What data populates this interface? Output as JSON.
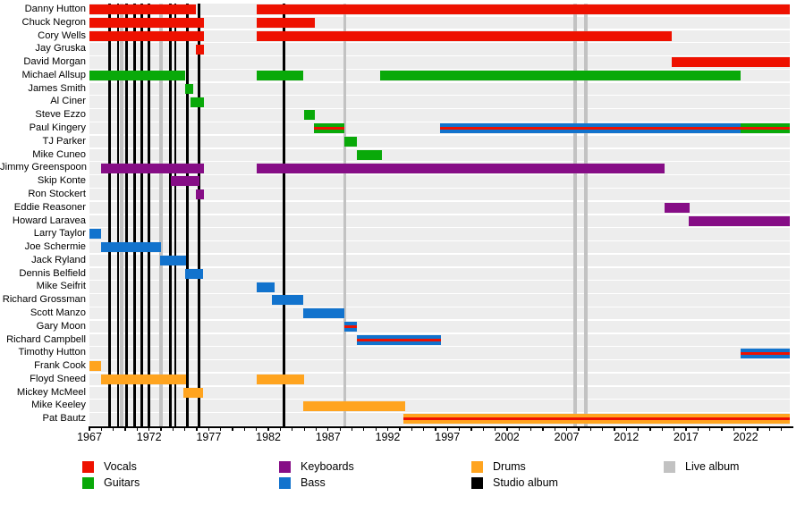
{
  "chart_data": {
    "type": "bar",
    "variant": "band-membership-timeline-gantt",
    "title": "",
    "x_axis": {
      "min": 1967,
      "max": 2025.7,
      "major_ticks": [
        1967,
        1972,
        1977,
        1982,
        1987,
        1992,
        1997,
        2002,
        2007,
        2012,
        2017,
        2022
      ],
      "minor_tick_interval": 1,
      "grid": "off",
      "tick_label_format": "year"
    },
    "role_colors": {
      "vocals": "#ee1100",
      "guitars": "#09a909",
      "keyboards": "#860d86",
      "bass": "#1273cd",
      "drums": "#ffa41f"
    },
    "album_line_colors": {
      "studio": "#000000",
      "live": "#c2c2c2"
    },
    "legend": {
      "position": "bottom",
      "columns": [
        [
          {
            "label": "Vocals",
            "color": "#ee1100",
            "kind": "role"
          },
          {
            "label": "Guitars",
            "color": "#09a909",
            "kind": "role"
          }
        ],
        [
          {
            "label": "Keyboards",
            "color": "#860d86",
            "kind": "role"
          },
          {
            "label": "Bass",
            "color": "#1273cd",
            "kind": "role"
          }
        ],
        [
          {
            "label": "Drums",
            "color": "#ffa41f",
            "kind": "role"
          },
          {
            "label": "Studio album",
            "color": "#000000",
            "kind": "album-line"
          }
        ],
        [
          {
            "label": "Live album",
            "color": "#c2c2c2",
            "kind": "album-line"
          }
        ]
      ]
    },
    "members": [
      {
        "name": "Danny Hutton",
        "bars": [
          {
            "start": 1967.0,
            "end": 1975.9,
            "roles": [
              "vocals"
            ]
          },
          {
            "start": 1981.0,
            "end": 2025.7,
            "roles": [
              "vocals"
            ]
          }
        ]
      },
      {
        "name": "Chuck Negron",
        "bars": [
          {
            "start": 1967.0,
            "end": 1976.6,
            "roles": [
              "vocals"
            ]
          },
          {
            "start": 1981.0,
            "end": 1985.9,
            "roles": [
              "vocals"
            ]
          }
        ]
      },
      {
        "name": "Cory Wells",
        "bars": [
          {
            "start": 1967.0,
            "end": 1976.6,
            "roles": [
              "vocals"
            ]
          },
          {
            "start": 1981.0,
            "end": 2015.8,
            "roles": [
              "vocals"
            ]
          }
        ]
      },
      {
        "name": "Jay Gruska",
        "bars": [
          {
            "start": 1975.9,
            "end": 1976.6,
            "roles": [
              "vocals"
            ]
          }
        ]
      },
      {
        "name": "David Morgan",
        "bars": [
          {
            "start": 2015.8,
            "end": 2025.7,
            "roles": [
              "vocals"
            ]
          }
        ]
      },
      {
        "name": "Michael Allsup",
        "bars": [
          {
            "start": 1967.0,
            "end": 1975.0,
            "roles": [
              "guitars"
            ]
          },
          {
            "start": 1981.0,
            "end": 1984.9,
            "roles": [
              "guitars"
            ]
          },
          {
            "start": 1991.4,
            "end": 2021.6,
            "roles": [
              "guitars"
            ]
          }
        ]
      },
      {
        "name": "James Smith",
        "bars": [
          {
            "start": 1975.0,
            "end": 1975.7,
            "roles": [
              "guitars"
            ]
          }
        ]
      },
      {
        "name": "Al Ciner",
        "bars": [
          {
            "start": 1975.5,
            "end": 1976.6,
            "roles": [
              "guitars"
            ]
          }
        ]
      },
      {
        "name": "Steve Ezzo",
        "bars": [
          {
            "start": 1985.0,
            "end": 1985.9,
            "roles": [
              "guitars"
            ]
          }
        ]
      },
      {
        "name": "Paul Kingery",
        "bars": [
          {
            "start": 1985.8,
            "end": 1988.4,
            "roles": [
              "guitars",
              "vocals"
            ]
          },
          {
            "start": 1996.4,
            "end": 2021.6,
            "roles": [
              "bass",
              "vocals"
            ]
          },
          {
            "start": 2021.6,
            "end": 2025.7,
            "roles": [
              "guitars",
              "vocals"
            ]
          }
        ]
      },
      {
        "name": "TJ Parker",
        "bars": [
          {
            "start": 1988.4,
            "end": 1989.4,
            "roles": [
              "guitars"
            ]
          }
        ]
      },
      {
        "name": "Mike Cuneo",
        "bars": [
          {
            "start": 1989.4,
            "end": 1991.5,
            "roles": [
              "guitars"
            ]
          }
        ]
      },
      {
        "name": "Jimmy Greenspoon",
        "bars": [
          {
            "start": 1968.0,
            "end": 1976.6,
            "roles": [
              "keyboards"
            ]
          },
          {
            "start": 1981.0,
            "end": 2015.2,
            "roles": [
              "keyboards"
            ]
          }
        ]
      },
      {
        "name": "Skip Konte",
        "bars": [
          {
            "start": 1973.8,
            "end": 1976.2,
            "roles": [
              "keyboards"
            ]
          }
        ]
      },
      {
        "name": "Ron Stockert",
        "bars": [
          {
            "start": 1975.9,
            "end": 1976.6,
            "roles": [
              "keyboards"
            ]
          }
        ]
      },
      {
        "name": "Eddie Reasoner",
        "bars": [
          {
            "start": 2015.2,
            "end": 2017.3,
            "roles": [
              "keyboards"
            ]
          }
        ]
      },
      {
        "name": "Howard Laravea",
        "bars": [
          {
            "start": 2017.2,
            "end": 2025.7,
            "roles": [
              "keyboards"
            ]
          }
        ]
      },
      {
        "name": "Larry Taylor",
        "bars": [
          {
            "start": 1967.0,
            "end": 1968.0,
            "roles": [
              "bass"
            ]
          }
        ]
      },
      {
        "name": "Joe Schermie",
        "bars": [
          {
            "start": 1968.0,
            "end": 1973.0,
            "roles": [
              "bass"
            ]
          }
        ]
      },
      {
        "name": "Jack Ryland",
        "bars": [
          {
            "start": 1972.9,
            "end": 1975.1,
            "roles": [
              "bass"
            ]
          }
        ]
      },
      {
        "name": "Dennis Belfield",
        "bars": [
          {
            "start": 1975.0,
            "end": 1976.5,
            "roles": [
              "bass"
            ]
          }
        ]
      },
      {
        "name": "Mike Seifrit",
        "bars": [
          {
            "start": 1981.0,
            "end": 1982.5,
            "roles": [
              "bass"
            ]
          }
        ]
      },
      {
        "name": "Richard Grossman",
        "bars": [
          {
            "start": 1982.3,
            "end": 1984.9,
            "roles": [
              "bass"
            ]
          }
        ]
      },
      {
        "name": "Scott Manzo",
        "bars": [
          {
            "start": 1984.9,
            "end": 1988.4,
            "roles": [
              "bass"
            ]
          }
        ]
      },
      {
        "name": "Gary Moon",
        "bars": [
          {
            "start": 1988.4,
            "end": 1989.4,
            "roles": [
              "bass",
              "vocals"
            ]
          }
        ]
      },
      {
        "name": "Richard Campbell",
        "bars": [
          {
            "start": 1989.4,
            "end": 1996.5,
            "roles": [
              "bass",
              "vocals"
            ]
          }
        ]
      },
      {
        "name": "Timothy Hutton",
        "bars": [
          {
            "start": 2021.6,
            "end": 2025.7,
            "roles": [
              "bass",
              "vocals"
            ]
          }
        ]
      },
      {
        "name": "Frank Cook",
        "bars": [
          {
            "start": 1967.0,
            "end": 1968.0,
            "roles": [
              "drums"
            ]
          }
        ]
      },
      {
        "name": "Floyd Sneed",
        "bars": [
          {
            "start": 1968.0,
            "end": 1975.1,
            "roles": [
              "drums"
            ]
          },
          {
            "start": 1981.0,
            "end": 1985.0,
            "roles": [
              "drums"
            ]
          }
        ]
      },
      {
        "name": "Mickey McMeel",
        "bars": [
          {
            "start": 1974.9,
            "end": 1976.5,
            "roles": [
              "drums"
            ]
          }
        ]
      },
      {
        "name": "Mike Keeley",
        "bars": [
          {
            "start": 1984.9,
            "end": 1993.5,
            "roles": [
              "drums"
            ]
          }
        ]
      },
      {
        "name": "Pat Bautz",
        "bars": [
          {
            "start": 1993.3,
            "end": 2025.7,
            "roles": [
              "drums",
              "vocals"
            ]
          }
        ]
      }
    ],
    "albums": {
      "studio_years": [
        1968.7,
        1969.4,
        1970.1,
        1970.8,
        1971.4,
        1972.0,
        1973.8,
        1974.2,
        1975.2,
        1976.2,
        1983.3
      ],
      "live_years": [
        1969.7,
        1973.0,
        1988.4,
        2007.7,
        2008.6
      ]
    }
  }
}
